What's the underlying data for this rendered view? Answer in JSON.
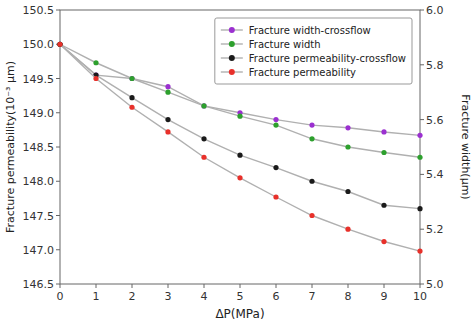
{
  "chart_data": {
    "type": "line",
    "xlabel": "ΔP(MPa)",
    "ylabel": "Fracture permeability(10⁻³ μm)",
    "y2label": "Fracture width(μm)",
    "x": [
      0,
      1,
      2,
      3,
      4,
      5,
      6,
      7,
      8,
      9,
      10
    ],
    "series": [
      {
        "name": "Fracture width-crossflow",
        "color": "#9b30d0",
        "marker": "circle",
        "line_style": "solid",
        "values": [
          150.0,
          149.55,
          149.5,
          149.38,
          149.1,
          149.0,
          148.9,
          148.82,
          148.78,
          148.72,
          148.67
        ]
      },
      {
        "name": "Fracture width",
        "color": "#2da02d",
        "marker": "circle",
        "line_style": "solid",
        "values": [
          150.0,
          149.73,
          149.5,
          149.3,
          149.1,
          148.95,
          148.82,
          148.62,
          148.5,
          148.42,
          148.35
        ]
      },
      {
        "name": "Fracture permeability-crossflow",
        "color": "#1a1a1a",
        "marker": "circle",
        "line_style": "solid",
        "values": [
          150.0,
          149.55,
          149.22,
          148.9,
          148.62,
          148.38,
          148.2,
          148.0,
          147.85,
          147.65,
          147.6
        ]
      },
      {
        "name": "Fracture permeability",
        "color": "#e8302a",
        "marker": "circle",
        "line_style": "solid",
        "values": [
          150.0,
          149.5,
          149.08,
          148.72,
          148.35,
          148.05,
          147.77,
          147.5,
          147.3,
          147.12,
          146.98
        ]
      }
    ],
    "xlim": [
      0,
      10
    ],
    "xticks": [
      0,
      1,
      2,
      3,
      4,
      5,
      6,
      7,
      8,
      9,
      10
    ],
    "ylim": [
      146.5,
      150.5
    ],
    "yticks": [
      146.5,
      {
        "value": 147.0,
        "label": "147.0"
      },
      147.5,
      {
        "value": 148.0,
        "label": "148.0"
      },
      148.5,
      {
        "value": 149.0,
        "label": "149.0"
      },
      149.5,
      {
        "value": 150.0,
        "label": "150.0"
      },
      150.5
    ],
    "y2lim": [
      5.0,
      6.0
    ],
    "y2ticks": [
      {
        "value": 5.0,
        "label": "5.0"
      },
      5.2,
      5.4,
      5.6,
      5.8,
      {
        "value": 6.0,
        "label": "6.0"
      }
    ],
    "grid": false,
    "legend": "upper right"
  }
}
